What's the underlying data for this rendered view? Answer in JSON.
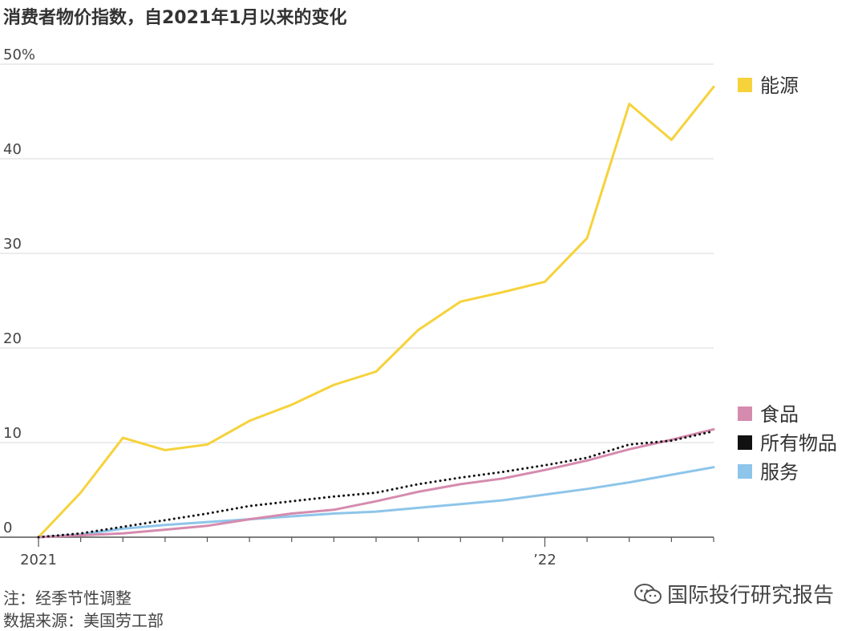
{
  "title": "消费者物价指数，自2021年1月以来的变化",
  "notes": {
    "note": "注：经季节性调整",
    "source": "数据来源：美国劳工部"
  },
  "watermark": {
    "icon": "wechat-icon",
    "text": "国际投行研究报告"
  },
  "chart_data": {
    "type": "line",
    "title": "消费者物价指数，自2021年1月以来的变化",
    "xlabel": "",
    "ylabel": "",
    "ylim": [
      0,
      50
    ],
    "y_ticks": [
      "50%",
      "40",
      "30",
      "20",
      "10",
      "0"
    ],
    "y_tick_values": [
      50,
      40,
      30,
      20,
      10,
      0
    ],
    "x_tick_labels": [
      {
        "label": "2021",
        "month": 0
      },
      {
        "label": "’22",
        "month": 12
      }
    ],
    "x": [
      "2021-01",
      "2021-02",
      "2021-03",
      "2021-04",
      "2021-05",
      "2021-06",
      "2021-07",
      "2021-08",
      "2021-09",
      "2021-10",
      "2021-11",
      "2021-12",
      "2022-01",
      "2022-02",
      "2022-03",
      "2022-04",
      "2022-05"
    ],
    "grid": true,
    "series": [
      {
        "name": "能源",
        "color": "#F6D23B",
        "style": "solid",
        "values": [
          0,
          4.7,
          10.5,
          9.2,
          9.8,
          12.3,
          14.0,
          16.1,
          17.5,
          21.9,
          24.9,
          25.9,
          27.0,
          31.6,
          45.8,
          42.0,
          47.6
        ]
      },
      {
        "name": "食品",
        "color": "#D58BAE",
        "style": "solid",
        "values": [
          0,
          0.2,
          0.4,
          0.8,
          1.2,
          1.9,
          2.5,
          2.9,
          3.8,
          4.8,
          5.6,
          6.2,
          7.1,
          8.1,
          9.3,
          10.3,
          11.4
        ]
      },
      {
        "name": "所有物品",
        "color": "#111111",
        "style": "dotted",
        "values": [
          0,
          0.4,
          1.1,
          1.8,
          2.5,
          3.3,
          3.8,
          4.3,
          4.7,
          5.6,
          6.3,
          6.9,
          7.6,
          8.4,
          9.8,
          10.2,
          11.2
        ]
      },
      {
        "name": "服务",
        "color": "#8EC5EA",
        "style": "solid",
        "values": [
          0,
          0.3,
          0.9,
          1.3,
          1.6,
          1.9,
          2.2,
          2.5,
          2.7,
          3.1,
          3.5,
          3.9,
          4.5,
          5.1,
          5.8,
          6.6,
          7.4
        ]
      }
    ],
    "legend": [
      {
        "name": "能源",
        "color": "#F6D23B"
      },
      {
        "name": "食品",
        "color": "#D58BAE"
      },
      {
        "name": "所有物品",
        "color": "#111111"
      },
      {
        "name": "服务",
        "color": "#8EC5EA"
      }
    ],
    "legend_position": "right"
  }
}
